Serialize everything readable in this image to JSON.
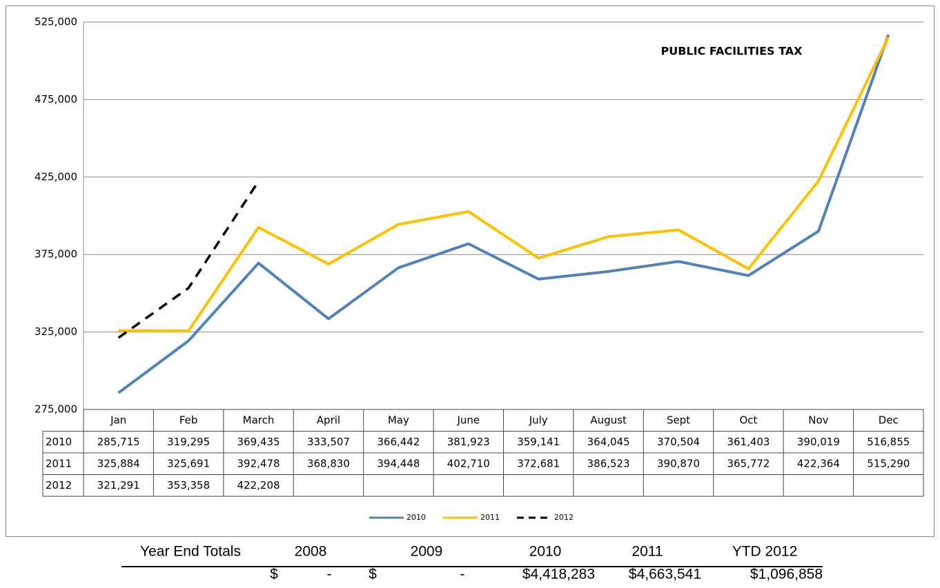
{
  "chart_data": {
    "type": "line",
    "title": "PUBLIC FACILITIES TAX",
    "categories": [
      "Jan",
      "Feb",
      "March",
      "April",
      "May",
      "June",
      "July",
      "August",
      "Sept",
      "Oct",
      "Nov",
      "Dec"
    ],
    "series": [
      {
        "name": "2010",
        "color": "#4f81bd",
        "dashed": false,
        "values": [
          285715,
          319295,
          369435,
          333507,
          366442,
          381923,
          359141,
          364045,
          370504,
          361403,
          390019,
          516855
        ],
        "value_labels": [
          "285,715",
          "319,295",
          "369,435",
          "333,507",
          "366,442",
          "381,923",
          "359,141",
          "364,045",
          "370,504",
          "361,403",
          "390,019",
          "516,855"
        ]
      },
      {
        "name": "2011",
        "color": "#ffc000",
        "dashed": false,
        "values": [
          325884,
          325691,
          392478,
          368830,
          394448,
          402710,
          372681,
          386523,
          390870,
          365772,
          422364,
          515290
        ],
        "value_labels": [
          "325,884",
          "325,691",
          "392,478",
          "368,830",
          "394,448",
          "402,710",
          "372,681",
          "386,523",
          "390,870",
          "365,772",
          "422,364",
          "515,290"
        ]
      },
      {
        "name": "2012",
        "color": "#000000",
        "dashed": true,
        "values": [
          321291,
          353358,
          422208,
          null,
          null,
          null,
          null,
          null,
          null,
          null,
          null,
          null
        ],
        "value_labels": [
          "321,291",
          "353,358",
          "422,208",
          null,
          null,
          null,
          null,
          null,
          null,
          null,
          null,
          null
        ]
      }
    ],
    "ylim": [
      275000,
      525000
    ],
    "yticks": [
      {
        "value": 275000,
        "label": "275,000"
      },
      {
        "value": 325000,
        "label": "325,000"
      },
      {
        "value": 375000,
        "label": "375,000"
      },
      {
        "value": 425000,
        "label": "425,000"
      },
      {
        "value": 475000,
        "label": "475,000"
      },
      {
        "value": 525000,
        "label": "525,000"
      }
    ],
    "grid": true,
    "legend": "bottom"
  },
  "year_end_totals": {
    "label": "Year End Totals",
    "headers": [
      "2008",
      "2009",
      "2010",
      "2011",
      "YTD 2012"
    ],
    "cells": [
      "$",
      "-",
      "$",
      "-",
      "$4,418,283",
      "$4,663,541",
      "$1,096,858"
    ]
  }
}
